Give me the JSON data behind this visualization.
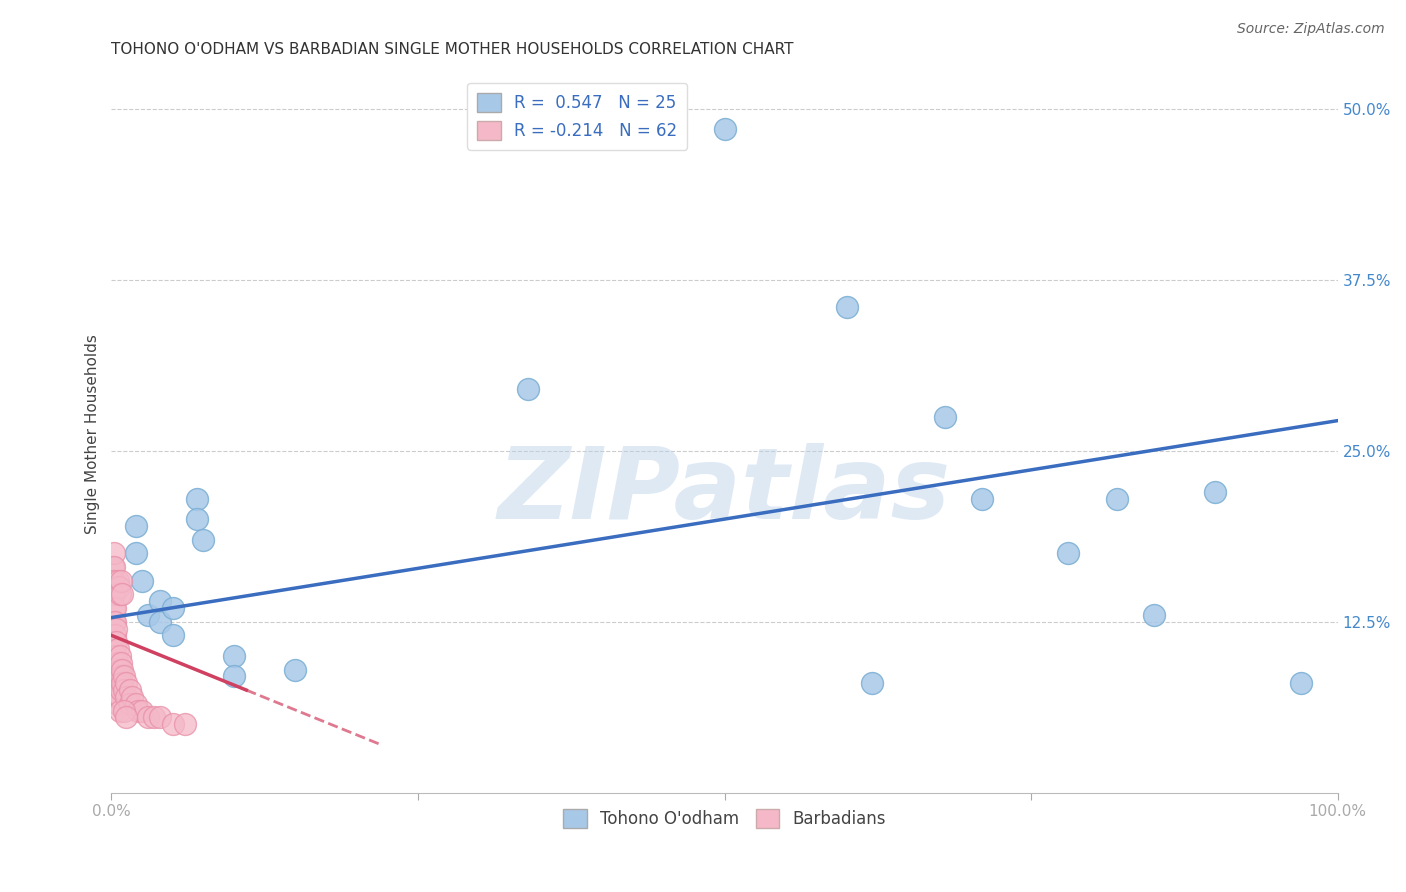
{
  "title": "TOHONO O'ODHAM VS BARBADIAN SINGLE MOTHER HOUSEHOLDS CORRELATION CHART",
  "source": "Source: ZipAtlas.com",
  "ylabel": "Single Mother Households",
  "xlim": [
    0,
    1.0
  ],
  "ylim": [
    0,
    0.525
  ],
  "yticks": [
    0.0,
    0.125,
    0.25,
    0.375,
    0.5
  ],
  "ytick_labels": [
    "",
    "12.5%",
    "25.0%",
    "37.5%",
    "50.0%"
  ],
  "grid_color": "#cccccc",
  "background_color": "#ffffff",
  "watermark_text": "ZIPatlas",
  "legend_R1": "R =  0.547",
  "legend_N1": "N = 25",
  "legend_R2": "R = -0.214",
  "legend_N2": "N = 62",
  "blue_color": "#a8c8e8",
  "pink_color": "#f4b8c8",
  "blue_edge_color": "#7aaed4",
  "pink_edge_color": "#e890a8",
  "blue_line_color": "#3a6dbf",
  "pink_line_color": "#d04060",
  "blue_scatter": [
    [
      0.02,
      0.195
    ],
    [
      0.02,
      0.175
    ],
    [
      0.025,
      0.155
    ],
    [
      0.03,
      0.13
    ],
    [
      0.04,
      0.14
    ],
    [
      0.04,
      0.125
    ],
    [
      0.05,
      0.135
    ],
    [
      0.05,
      0.115
    ],
    [
      0.07,
      0.215
    ],
    [
      0.07,
      0.2
    ],
    [
      0.075,
      0.185
    ],
    [
      0.1,
      0.1
    ],
    [
      0.1,
      0.085
    ],
    [
      0.15,
      0.09
    ],
    [
      0.34,
      0.295
    ],
    [
      0.5,
      0.485
    ],
    [
      0.6,
      0.355
    ],
    [
      0.62,
      0.08
    ],
    [
      0.68,
      0.275
    ],
    [
      0.71,
      0.215
    ],
    [
      0.78,
      0.175
    ],
    [
      0.82,
      0.215
    ],
    [
      0.85,
      0.13
    ],
    [
      0.9,
      0.22
    ],
    [
      0.97,
      0.08
    ]
  ],
  "pink_scatter": [
    [
      0.001,
      0.165
    ],
    [
      0.001,
      0.155
    ],
    [
      0.001,
      0.145
    ],
    [
      0.002,
      0.175
    ],
    [
      0.002,
      0.165
    ],
    [
      0.002,
      0.155
    ],
    [
      0.002,
      0.145
    ],
    [
      0.002,
      0.135
    ],
    [
      0.002,
      0.125
    ],
    [
      0.003,
      0.135
    ],
    [
      0.003,
      0.125
    ],
    [
      0.003,
      0.115
    ],
    [
      0.003,
      0.105
    ],
    [
      0.003,
      0.095
    ],
    [
      0.003,
      0.085
    ],
    [
      0.003,
      0.075
    ],
    [
      0.004,
      0.12
    ],
    [
      0.004,
      0.11
    ],
    [
      0.004,
      0.1
    ],
    [
      0.004,
      0.09
    ],
    [
      0.004,
      0.08
    ],
    [
      0.004,
      0.07
    ],
    [
      0.005,
      0.105
    ],
    [
      0.005,
      0.095
    ],
    [
      0.005,
      0.085
    ],
    [
      0.005,
      0.075
    ],
    [
      0.005,
      0.065
    ],
    [
      0.006,
      0.09
    ],
    [
      0.006,
      0.08
    ],
    [
      0.006,
      0.07
    ],
    [
      0.007,
      0.1
    ],
    [
      0.007,
      0.09
    ],
    [
      0.007,
      0.08
    ],
    [
      0.007,
      0.07
    ],
    [
      0.007,
      0.06
    ],
    [
      0.008,
      0.095
    ],
    [
      0.008,
      0.085
    ],
    [
      0.008,
      0.075
    ],
    [
      0.009,
      0.09
    ],
    [
      0.009,
      0.08
    ],
    [
      0.01,
      0.085
    ],
    [
      0.01,
      0.075
    ],
    [
      0.012,
      0.08
    ],
    [
      0.012,
      0.07
    ],
    [
      0.015,
      0.075
    ],
    [
      0.015,
      0.065
    ],
    [
      0.017,
      0.07
    ],
    [
      0.02,
      0.065
    ],
    [
      0.022,
      0.06
    ],
    [
      0.025,
      0.06
    ],
    [
      0.03,
      0.055
    ],
    [
      0.035,
      0.055
    ],
    [
      0.04,
      0.055
    ],
    [
      0.05,
      0.05
    ],
    [
      0.005,
      0.155
    ],
    [
      0.006,
      0.15
    ],
    [
      0.007,
      0.145
    ],
    [
      0.008,
      0.155
    ],
    [
      0.009,
      0.145
    ],
    [
      0.01,
      0.06
    ],
    [
      0.012,
      0.055
    ],
    [
      0.06,
      0.05
    ]
  ],
  "title_fontsize": 11,
  "axis_label_fontsize": 11,
  "tick_fontsize": 11,
  "legend_fontsize": 12,
  "source_fontsize": 10
}
